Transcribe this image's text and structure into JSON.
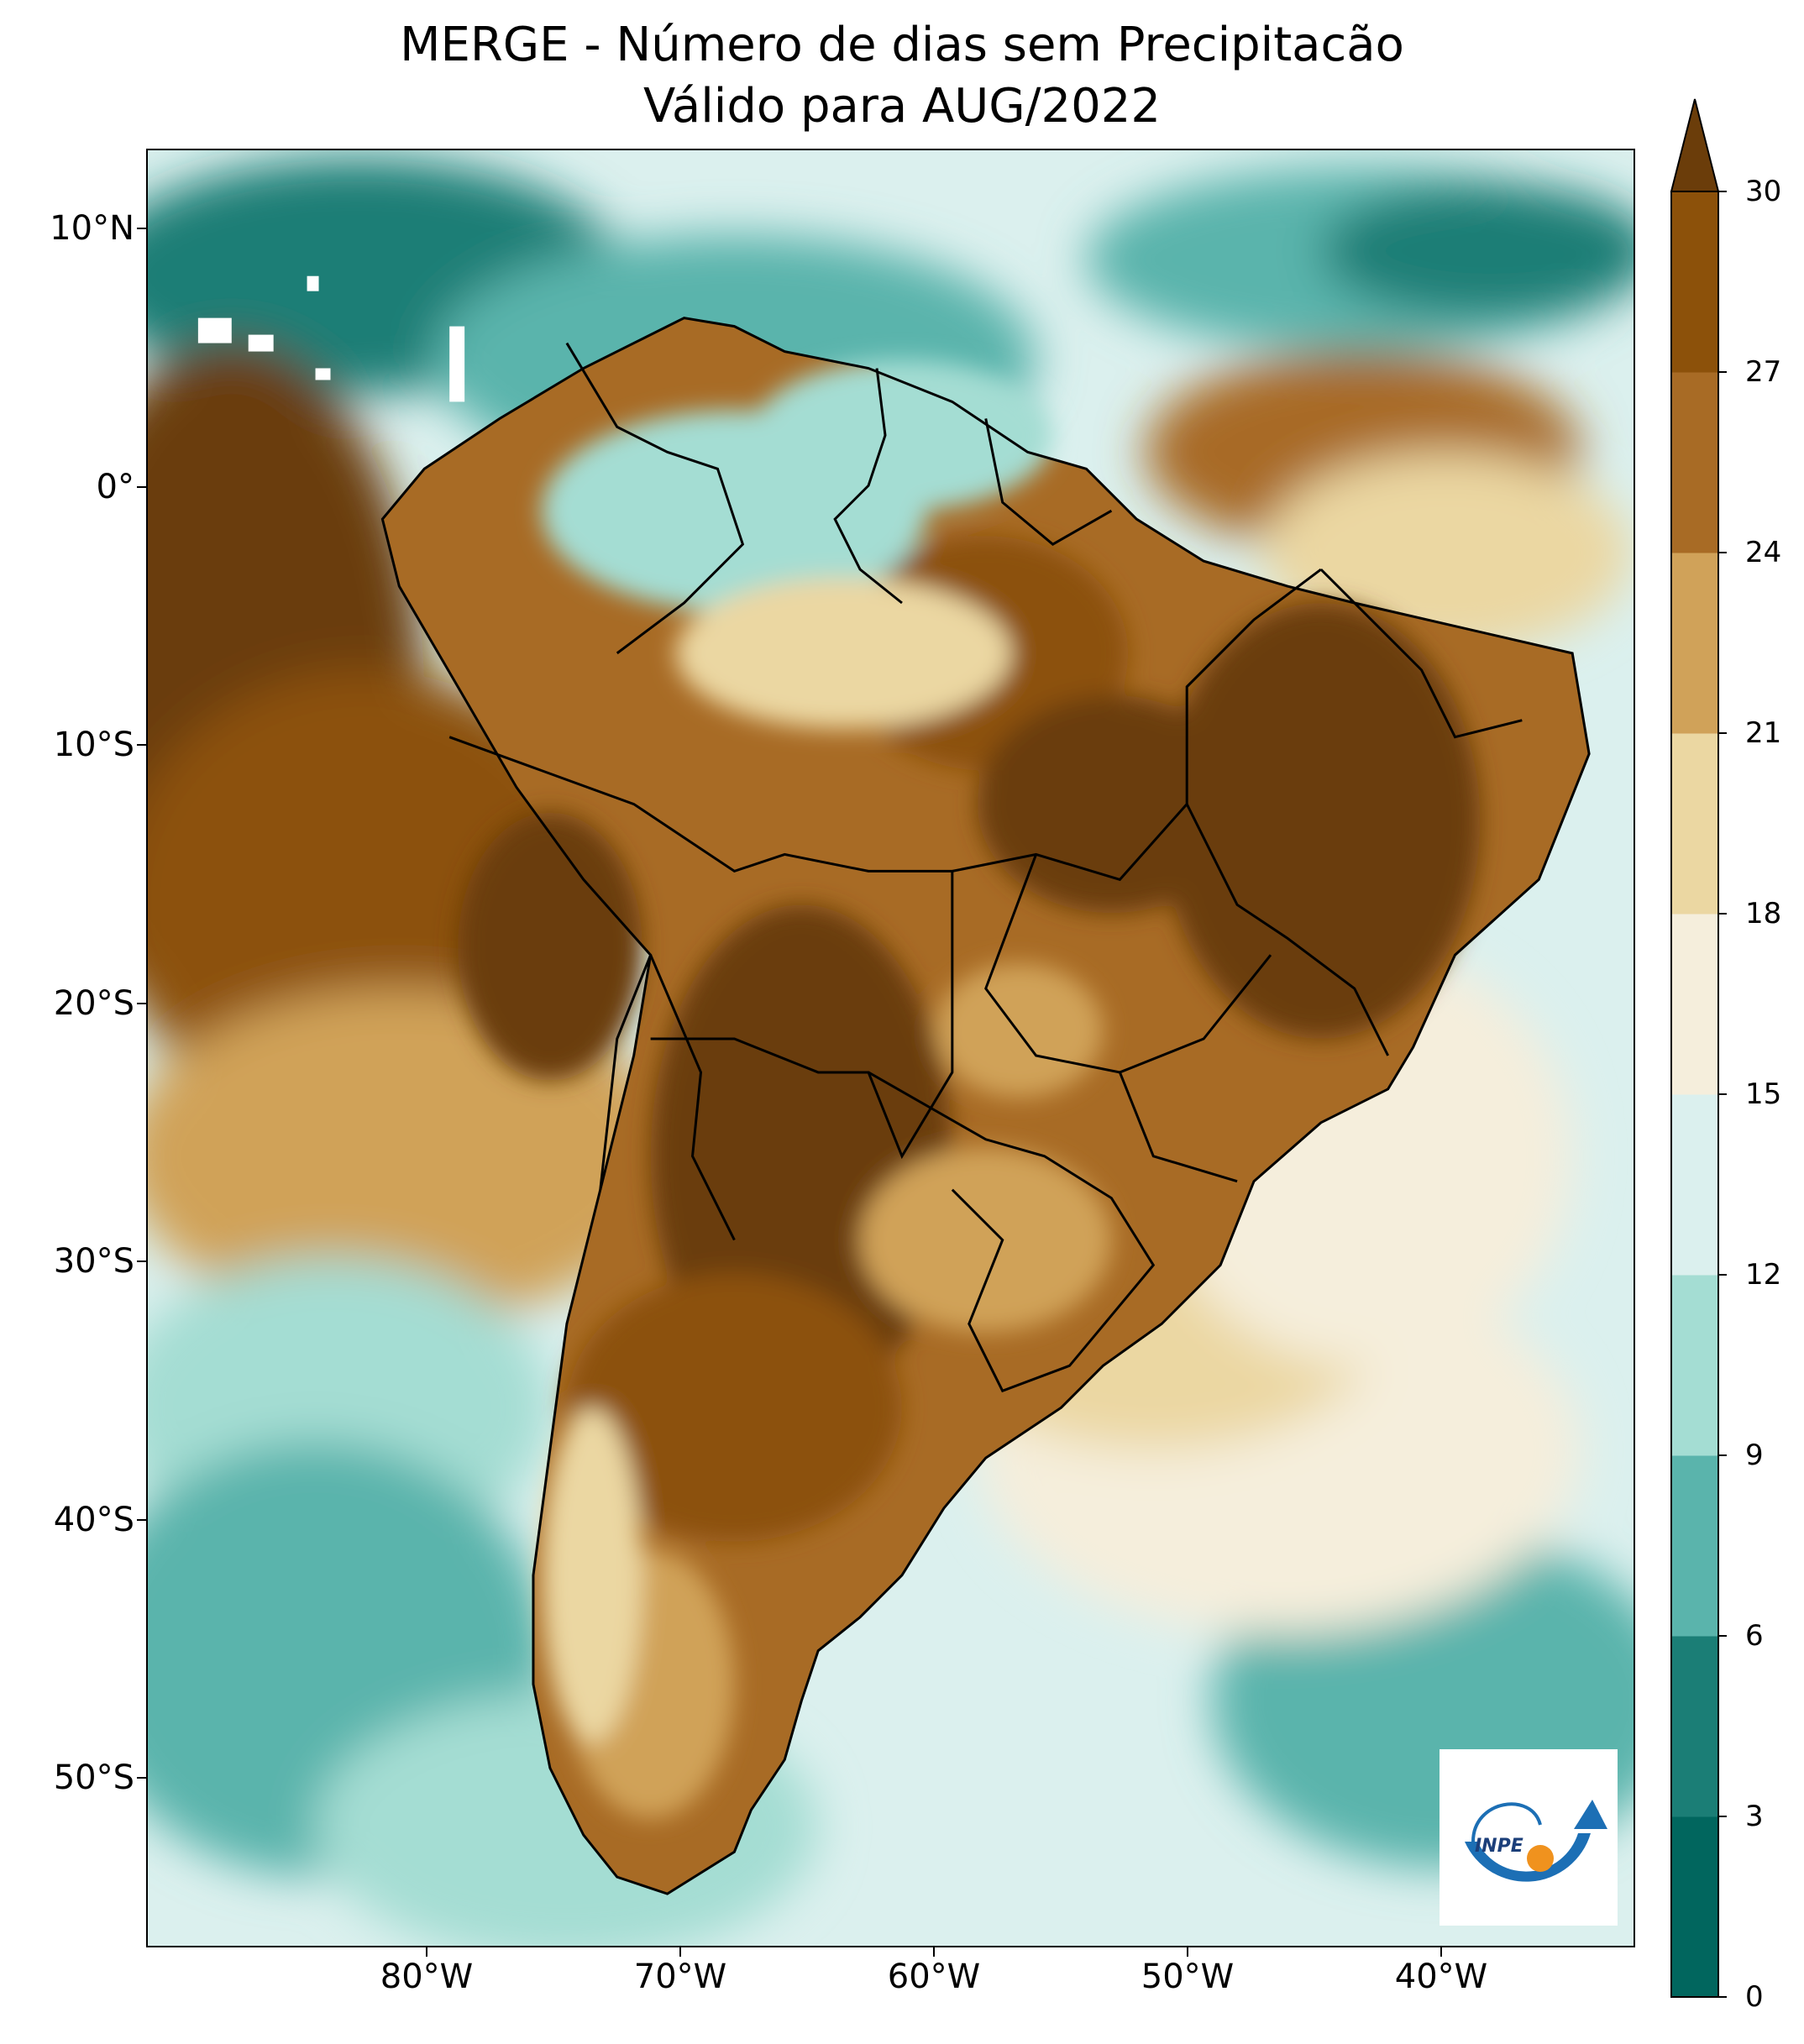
{
  "title_line1": "MERGE - Número de dias sem Precipitacão",
  "title_line2": "Válido para AUG/2022",
  "lat_labels": [
    "10°N",
    "0°",
    "10°S",
    "20°S",
    "30°S",
    "40°S",
    "50°S"
  ],
  "lon_labels": [
    "80°W",
    "70°W",
    "60°W",
    "50°W",
    "40°W"
  ],
  "colorbar": {
    "labels": [
      "0",
      "3",
      "6",
      "9",
      "12",
      "15",
      "18",
      "21",
      "24",
      "27",
      "30"
    ],
    "colors": [
      "#01665e",
      "#1b7e76",
      "#5ab4ac",
      "#a4ddd3",
      "#dbf0ee",
      "#f5eedc",
      "#ebd7a2",
      "#d0a259",
      "#a86b25",
      "#8c510a",
      "#6b3d0a"
    ]
  },
  "logo_text": "INPE",
  "colors": {
    "ocean_teal": "#5ab4ac",
    "land_brown": "#8c510a",
    "dark_brown": "#6b3d0a",
    "pale": "#f5eedc",
    "inpe_blue": "#1c6fb5",
    "inpe_orange": "#f0921e"
  }
}
